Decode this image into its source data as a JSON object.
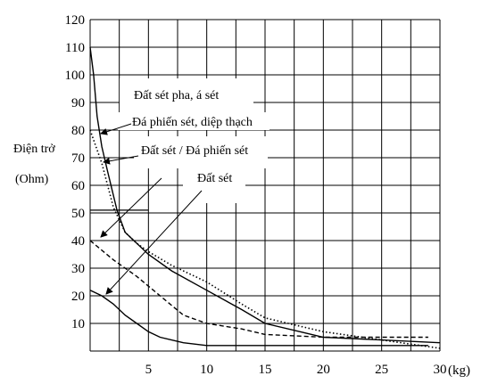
{
  "chart_data": {
    "type": "line",
    "ylabel_line1": "Điện trở",
    "ylabel_line2": "(Ohm)",
    "xunit": "(kg)",
    "ylim": [
      0,
      120
    ],
    "xlim": [
      0,
      30
    ],
    "x_ticks": [
      "5",
      "10",
      "15",
      "20",
      "25",
      "30"
    ],
    "y_ticks": [
      "10",
      "20",
      "30",
      "40",
      "50",
      "60",
      "70",
      "80",
      "90",
      "100",
      "110",
      "120"
    ],
    "grid": true,
    "series": [
      {
        "name": "Đất sét pha, á sét",
        "style": "solid",
        "x": [
          0,
          0.3,
          0.6,
          1.0,
          1.5,
          2.3,
          3.0,
          4.0,
          5.0,
          7.0,
          10.0,
          13.0,
          15.0,
          18.0,
          20.0,
          25.0,
          30.0
        ],
        "y": [
          110,
          100,
          85,
          74,
          65,
          51,
          43,
          39,
          35,
          29,
          22,
          15,
          10,
          7,
          5,
          4,
          3
        ]
      },
      {
        "name": "Đá phiến sét, diệp thạch",
        "style": "dotted",
        "x": [
          0,
          1.0,
          2.0,
          3.0,
          4.0,
          5.0,
          7.0,
          10.0,
          13.0,
          15.0,
          20.0,
          25.0,
          30.0
        ],
        "y": [
          80,
          68,
          52,
          43,
          39,
          36,
          31,
          25,
          17,
          12,
          7,
          4,
          1
        ]
      },
      {
        "name": "Đất sét / Đá phiến sét",
        "style": "dashed",
        "x": [
          0,
          2.0,
          4.0,
          6.0,
          8.0,
          10.0,
          13.0,
          15.0,
          20.0,
          25.0,
          29.0
        ],
        "y": [
          40,
          33,
          27,
          20,
          13,
          10,
          8,
          6,
          5,
          5,
          5
        ]
      },
      {
        "name": "Đất sét",
        "style": "solid",
        "x": [
          0,
          1.0,
          2.0,
          3.0,
          4.0,
          5.0,
          6.0,
          8.0,
          10.0,
          15.0,
          20.0,
          25.0,
          29.0
        ],
        "y": [
          22,
          20,
          17,
          13,
          10,
          7,
          5,
          3,
          2,
          2,
          2,
          2,
          2
        ]
      }
    ],
    "annotations": [
      {
        "text": "Đất sét pha, á sét"
      },
      {
        "text": "Đá phiến sét, diệp thạch"
      },
      {
        "text": "Đất sét / Đá phiến sét"
      },
      {
        "text": "Đất sét"
      }
    ]
  }
}
